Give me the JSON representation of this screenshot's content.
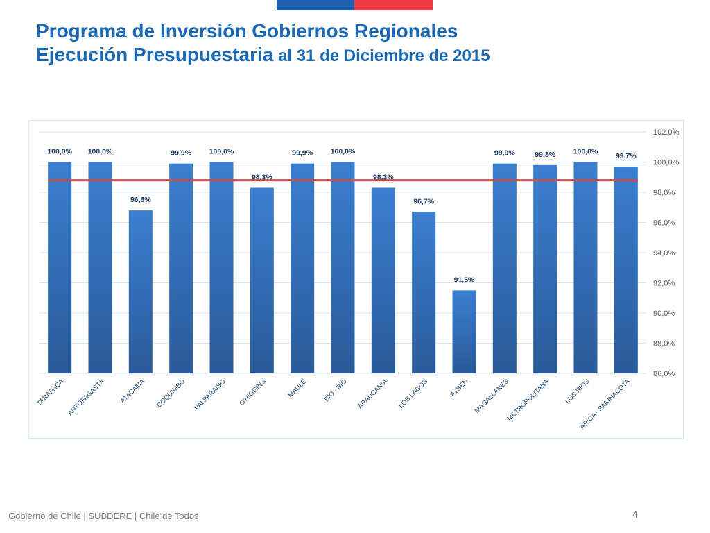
{
  "header": {
    "title_line1": "Programa de Inversión Gobiernos Regionales",
    "title_line2_a": "Ejecución Presupuestaria",
    "title_line2_b": " al 31 de Diciembre de 2015"
  },
  "colors": {
    "flag_blue": "#1f5fae",
    "flag_red": "#ee3a43",
    "title": "#1a67b4",
    "bar": "#2f6dbf",
    "average_line": "#c0504d"
  },
  "chart_data": {
    "type": "bar",
    "categories": [
      "TARAPACA",
      "ANTOFAGASTA",
      "ATACAMA",
      "COQUIMBO",
      "VALPARAISO",
      "O'HIGGINS",
      "MAULE",
      "BIO - BIO",
      "ARAUCANIA",
      "LOS LAGOS",
      "AYSEN",
      "MAGALLANES",
      "METROPOLITANA",
      "LOS RIOS",
      "ARICA - PARINACOTA"
    ],
    "values": [
      100.0,
      100.0,
      96.8,
      99.9,
      100.0,
      98.3,
      99.9,
      100.0,
      98.3,
      96.7,
      91.5,
      99.9,
      99.8,
      100.0,
      99.7
    ],
    "data_labels": [
      "100,0%",
      "100,0%",
      "96,8%",
      "99,9%",
      "100,0%",
      "98,3%",
      "99,9%",
      "100,0%",
      "98,3%",
      "96,7%",
      "91,5%",
      "99,9%",
      "99,8%",
      "100,0%",
      "99,7%"
    ],
    "average_line": 98.8,
    "ylim": [
      86,
      102
    ],
    "yticks": [
      86,
      88,
      90,
      92,
      94,
      96,
      98,
      100,
      102
    ],
    "ytick_labels": [
      "86,0%",
      "88,0%",
      "90,0%",
      "92,0%",
      "94,0%",
      "96,0%",
      "98,0%",
      "100,0%",
      "102,0%"
    ],
    "y_axis_side": "right",
    "grid": true,
    "title": "",
    "xlabel": "",
    "ylabel": ""
  },
  "footer": {
    "text": "Gobierno de Chile | SUBDERE | Chile de Todos",
    "page_number": "4"
  }
}
